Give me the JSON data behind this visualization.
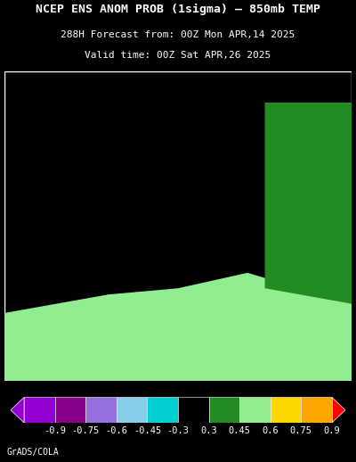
{
  "title_line1": "NCEP ENS ANOM PROB (1sigma) – 850mb TEMP",
  "title_line2": "288H Forecast from: 00Z Mon APR,14 2025",
  "title_line3": "Valid time: 00Z Sat APR,26 2025",
  "background_color": "#000000",
  "text_color": "#ffffff",
  "colorbar_colors": [
    "#9400D3",
    "#8B008B",
    "#9370DB",
    "#87CEEB",
    "#00CED1",
    "#000000",
    "#228B22",
    "#90EE90",
    "#FFD700",
    "#FFA500"
  ],
  "colorbar_arrow_left_color": "#9400D3",
  "colorbar_arrow_right_color": "#FF0000",
  "colorbar_labels": [
    "-0.9",
    "-0.75",
    "-0.6",
    "-0.45",
    "-0.3",
    "0.3",
    "0.45",
    "0.6",
    "0.75",
    "0.9"
  ],
  "grads_cola_text": "GrADS/COLA",
  "title_fontsize": 9.5,
  "subtitle_fontsize": 8.0,
  "colorbar_label_fontsize": 7.5,
  "map_extent": [
    -25,
    55,
    25,
    75
  ],
  "gridline_lons": [
    -20,
    -10,
    0,
    10,
    20,
    30,
    40,
    50
  ],
  "gridline_lats": [
    30,
    40,
    50,
    60,
    70
  ],
  "anomaly_colors": {
    "cyan": "#00CED1",
    "dark_green": "#228B22",
    "light_green": "#90EE90",
    "orange": "#FFA500",
    "black": "#000000"
  }
}
